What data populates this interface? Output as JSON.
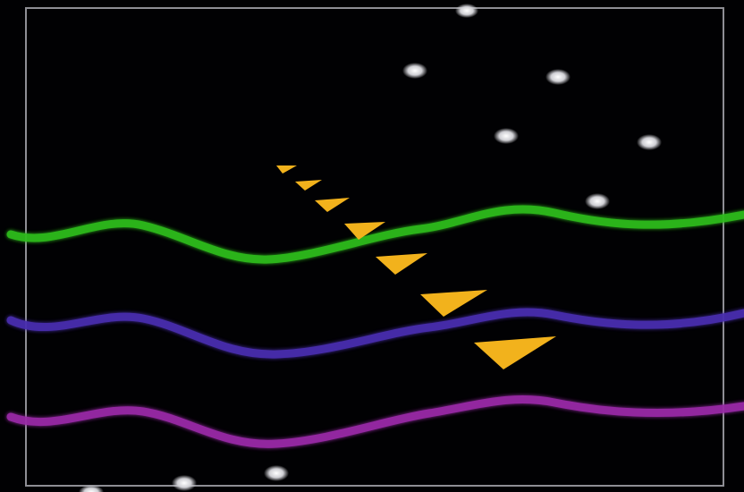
{
  "colors": {
    "background": "#010103",
    "frame": "#8e8e94",
    "wave_green": "#2fbd1f",
    "wave_blue": "#4a2fb0",
    "wave_magenta": "#9a2aa8",
    "arrow": "#f2b21c",
    "dot": "#d8d8dc"
  },
  "icons": {
    "dot": "glowing-dot-icon",
    "arrow": "yellow-arrowhead-icon"
  },
  "waves": [
    {
      "name": "green-wave",
      "color_key": "wave_green"
    },
    {
      "name": "blue-wave",
      "color_key": "wave_blue"
    },
    {
      "name": "magenta-wave",
      "color_key": "wave_magenta"
    }
  ]
}
